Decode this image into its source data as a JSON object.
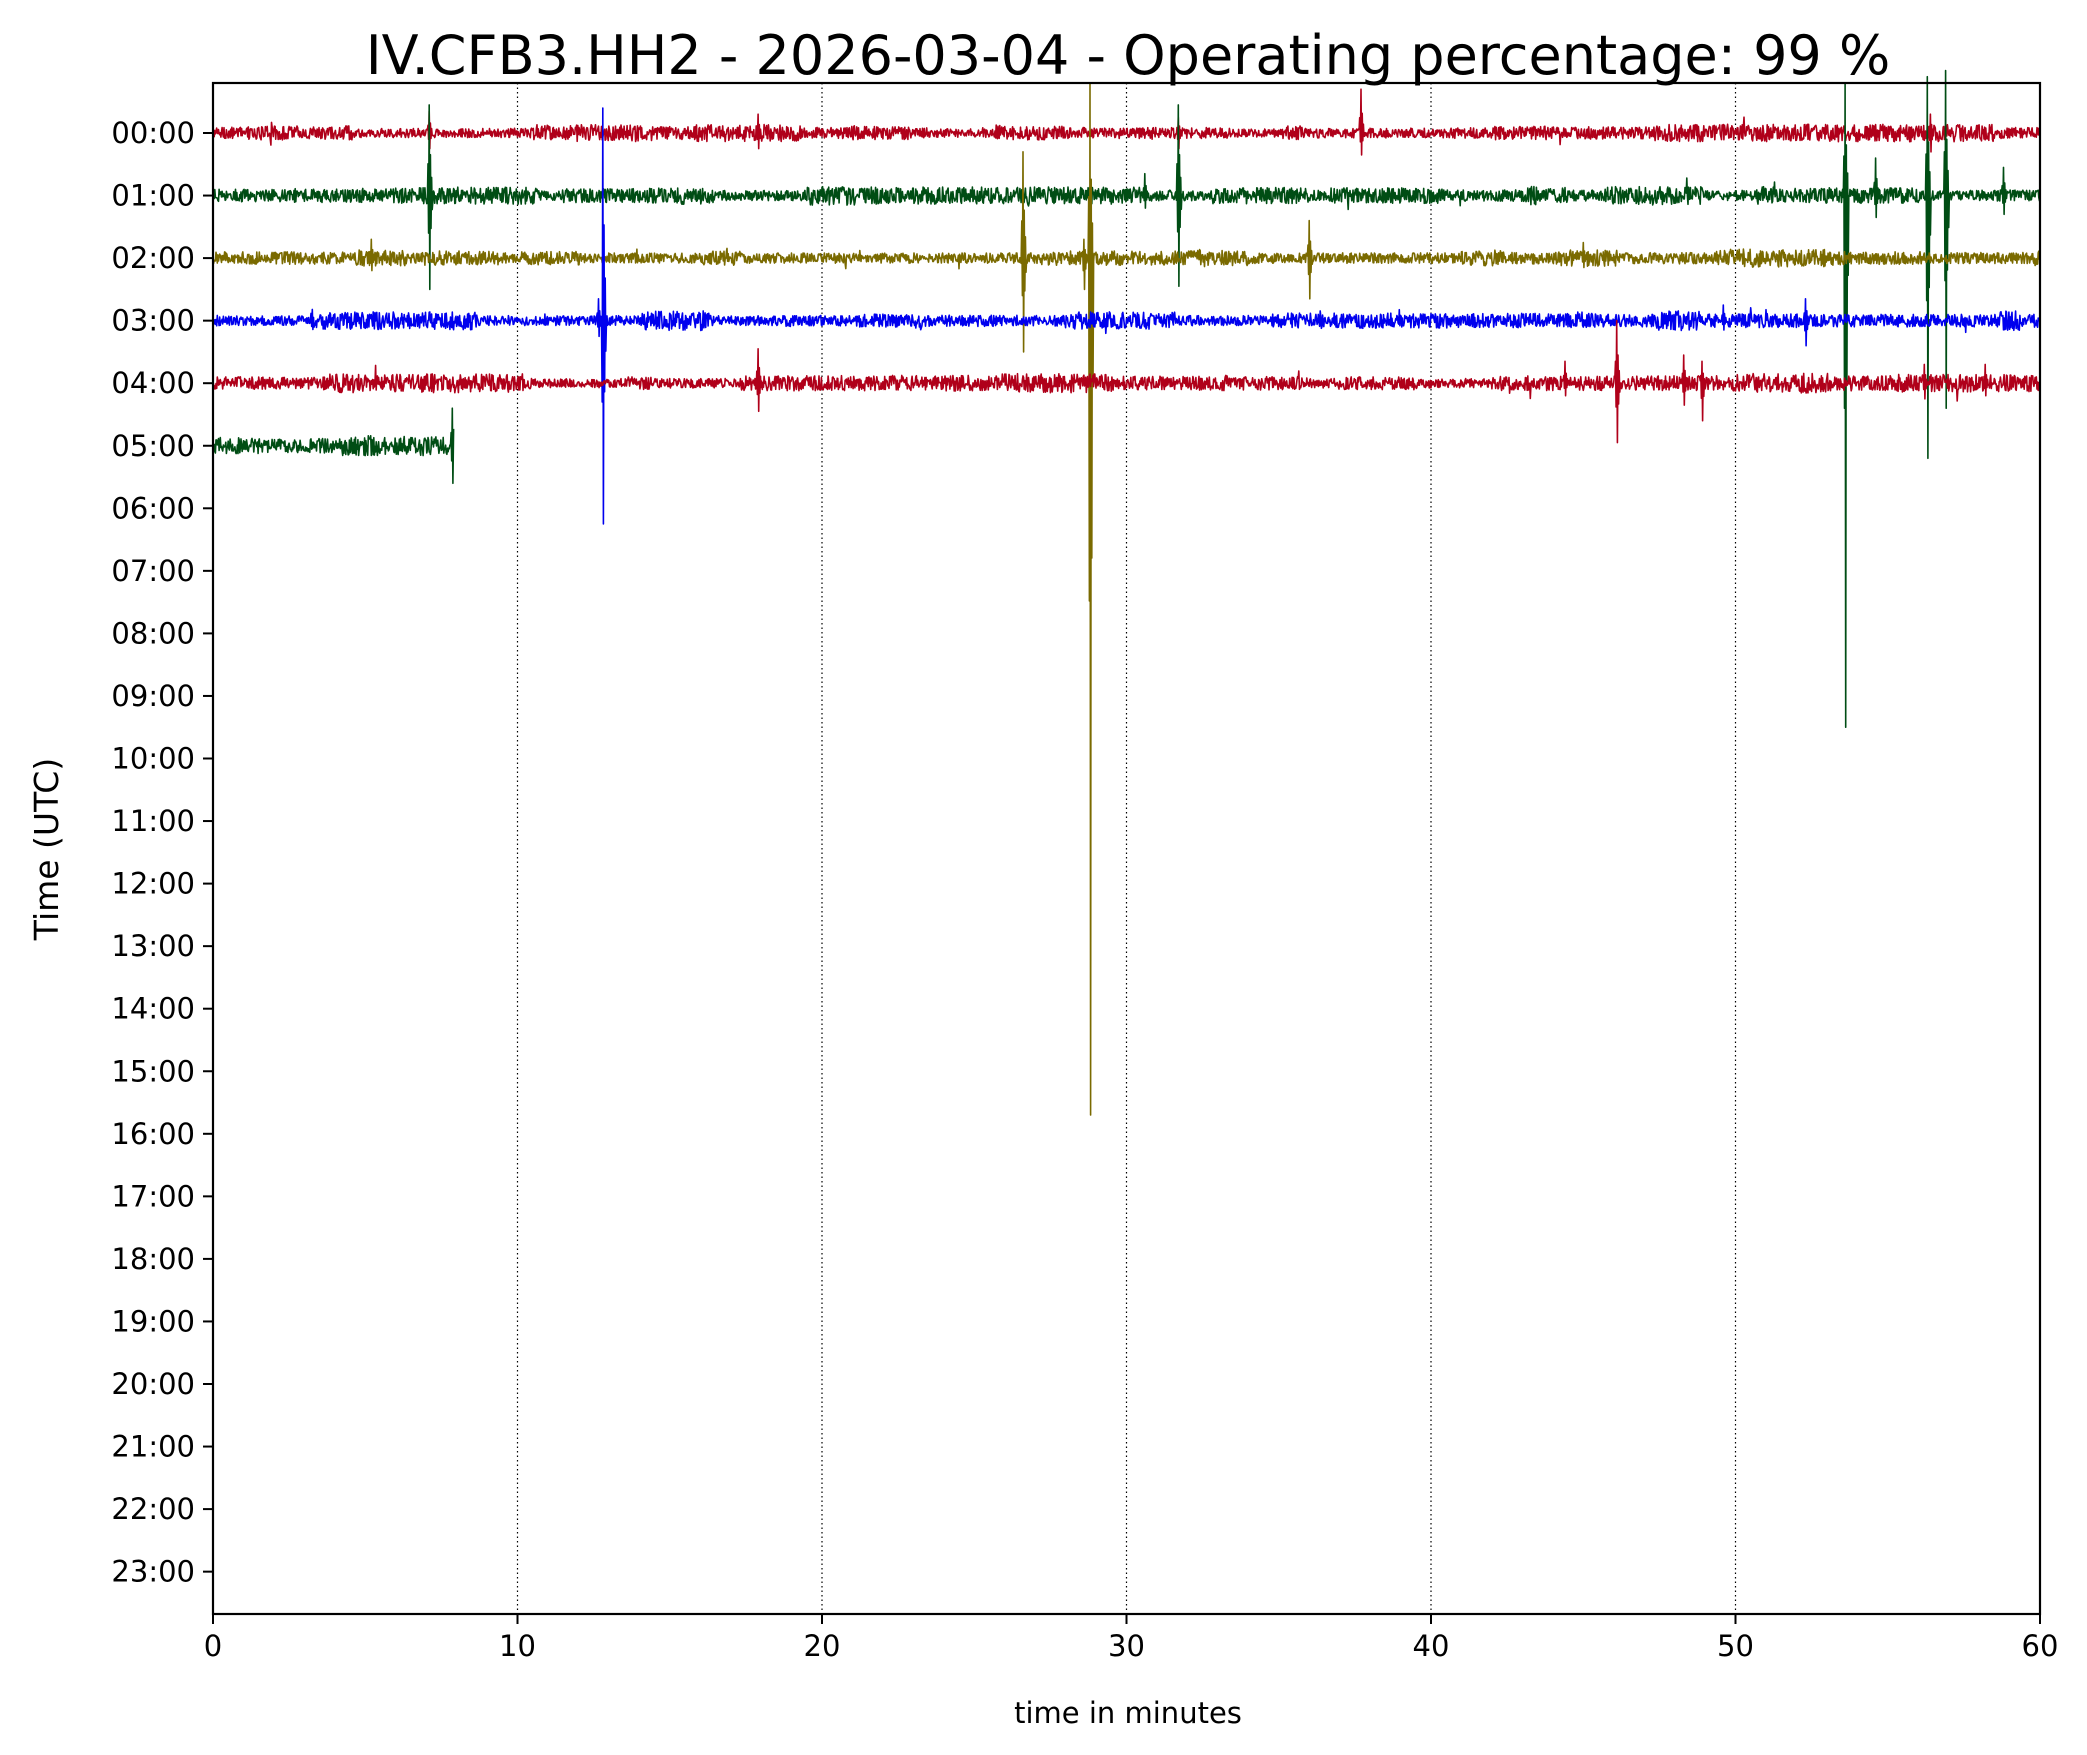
{
  "chart_data": {
    "type": "line",
    "title": "IV.CFB3.HH2 - 2026-03-04 - Operating percentage: 99 %",
    "xlabel": "time in minutes",
    "ylabel": "Time (UTC)",
    "xlim": [
      0,
      60
    ],
    "x_ticks": [
      "0",
      "10",
      "20",
      "30",
      "40",
      "50",
      "60"
    ],
    "x_tick_values": [
      0,
      10,
      20,
      30,
      40,
      50,
      60
    ],
    "y_tick_labels": [
      "00:00",
      "01:00",
      "02:00",
      "03:00",
      "04:00",
      "05:00",
      "06:00",
      "07:00",
      "08:00",
      "09:00",
      "10:00",
      "11:00",
      "12:00",
      "13:00",
      "14:00",
      "15:00",
      "16:00",
      "17:00",
      "18:00",
      "19:00",
      "20:00",
      "21:00",
      "22:00",
      "23:00"
    ],
    "grid": "vertical dotted lines at each x tick",
    "colors": [
      "#b0001a",
      "#004d14",
      "#7a6a00",
      "#0000ee"
    ],
    "series": [
      {
        "hour": "00:00",
        "color": "#b0001a",
        "end_minute": 60,
        "noise": 0.09,
        "spikes": [
          {
            "x": 7.1,
            "up": 0.35,
            "down": 0.25
          },
          {
            "x": 17.9,
            "up": 0.3,
            "down": 0.25
          },
          {
            "x": 31.7,
            "up": 0.25,
            "down": 0.25
          },
          {
            "x": 37.7,
            "up": 0.7,
            "down": 0.35
          },
          {
            "x": 56.4,
            "up": 0.3,
            "down": 0.3
          }
        ]
      },
      {
        "hour": "01:00",
        "color": "#004d14",
        "end_minute": 60,
        "noise": 0.1,
        "spikes": [
          {
            "x": 7.1,
            "up": 1.45,
            "down": 1.5
          },
          {
            "x": 30.6,
            "up": 0.35,
            "down": 0.2
          },
          {
            "x": 31.7,
            "up": 1.45,
            "down": 1.45
          },
          {
            "x": 53.6,
            "up": 1.8,
            "down": 8.5
          },
          {
            "x": 54.6,
            "up": 0.6,
            "down": 0.35
          },
          {
            "x": 56.3,
            "up": 1.9,
            "down": 4.2
          },
          {
            "x": 56.9,
            "up": 2.0,
            "down": 3.4
          },
          {
            "x": 58.8,
            "up": 0.45,
            "down": 0.3
          }
        ]
      },
      {
        "hour": "02:00",
        "color": "#7a6a00",
        "end_minute": 60,
        "noise": 0.1,
        "spikes": [
          {
            "x": 5.2,
            "up": 0.3,
            "down": 0.2
          },
          {
            "x": 26.6,
            "up": 1.7,
            "down": 1.5
          },
          {
            "x": 28.6,
            "up": 0.3,
            "down": 0.5
          },
          {
            "x": 28.8,
            "up": 2.8,
            "down": 13.7
          },
          {
            "x": 36.0,
            "up": 0.6,
            "down": 0.65
          },
          {
            "x": 45.0,
            "up": 0.25,
            "down": 0.15
          }
        ]
      },
      {
        "hour": "03:00",
        "color": "#0000ee",
        "end_minute": 60,
        "noise": 0.1,
        "spikes": [
          {
            "x": 12.8,
            "up": 3.4,
            "down": 3.25
          },
          {
            "x": 12.65,
            "up": 0.35,
            "down": 0.25
          },
          {
            "x": 49.6,
            "up": 0.25,
            "down": 0.15
          },
          {
            "x": 52.3,
            "up": 0.35,
            "down": 0.4
          }
        ]
      },
      {
        "hour": "04:00",
        "color": "#b0001a",
        "end_minute": 60,
        "noise": 0.1,
        "spikes": [
          {
            "x": 17.9,
            "up": 0.55,
            "down": 0.45
          },
          {
            "x": 44.4,
            "up": 0.35,
            "down": 0.2
          },
          {
            "x": 46.1,
            "up": 1.0,
            "down": 0.95
          },
          {
            "x": 48.3,
            "up": 0.45,
            "down": 0.35
          },
          {
            "x": 48.9,
            "up": 0.35,
            "down": 0.6
          },
          {
            "x": 56.2,
            "up": 0.3,
            "down": 0.25
          },
          {
            "x": 58.2,
            "up": 0.3,
            "down": 0.2
          }
        ]
      },
      {
        "hour": "05:00",
        "color": "#004d14",
        "end_minute": 7.9,
        "noise": 0.13,
        "spikes": [
          {
            "x": 7.85,
            "up": 0.6,
            "down": 0.6
          }
        ]
      }
    ]
  }
}
